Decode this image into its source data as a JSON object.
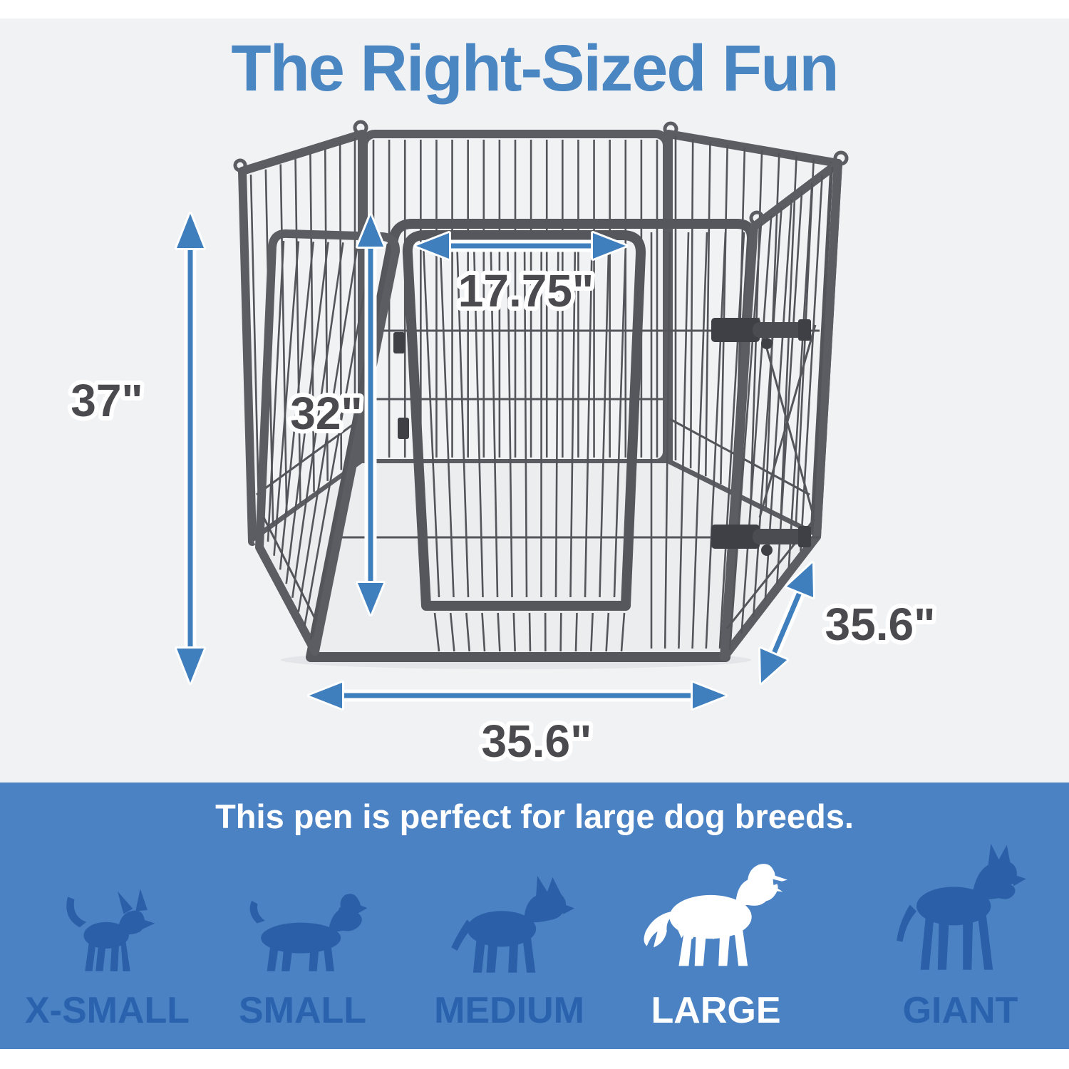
{
  "title": "The Right-Sized Fun",
  "pen": {
    "height_label": "37\"",
    "door_height_label": "32\"",
    "door_width_label": "17.75\"",
    "width_label": "35.6\"",
    "depth_label": "35.6\""
  },
  "banner": {
    "headline": "This pen is perfect for large dog breeds."
  },
  "sizes": [
    {
      "label": "X-SMALL",
      "highlighted": false
    },
    {
      "label": "SMALL",
      "highlighted": false
    },
    {
      "label": "MEDIUM",
      "highlighted": false
    },
    {
      "label": "LARGE",
      "highlighted": true
    },
    {
      "label": "GIANT",
      "highlighted": false
    }
  ],
  "colors": {
    "accent_blue": "#3f7fbd",
    "title_blue": "#4a86c2",
    "banner_blue": "#4a82c4",
    "dog_blue": "#2b5fa8",
    "dimension_text": "#4b4b4f",
    "background": "#f1f2f4"
  }
}
